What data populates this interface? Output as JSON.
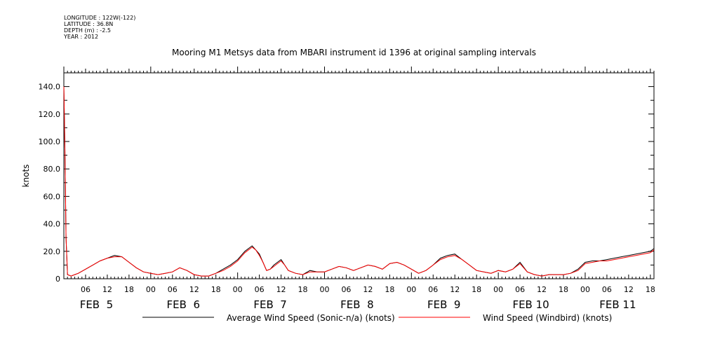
{
  "meta": {
    "longitude": "LONGITUDE : 122W(-122)",
    "latitude": "LATITUDE : 36.8N",
    "depth": "DEPTH (m) : -2.5",
    "year": "YEAR : 2012"
  },
  "chart_data": {
    "type": "line",
    "title": "Mooring M1 Metsys data from MBARI instrument id 1396 at original sampling intervals",
    "ylabel": "knots",
    "xlabel": "",
    "ylim": [
      0,
      150
    ],
    "y_ticks": [
      0,
      20,
      40,
      60,
      80,
      100,
      120,
      140
    ],
    "x_range_hours": [
      0,
      163
    ],
    "x_tick_labels": [
      "06",
      "12",
      "18",
      "00",
      "06",
      "12",
      "18",
      "00",
      "06",
      "12",
      "18",
      "00",
      "06",
      "12",
      "18",
      "00",
      "06",
      "12",
      "18",
      "00",
      "06",
      "12",
      "18",
      "00",
      "06",
      "12",
      "18"
    ],
    "x_tick_hours": [
      6,
      12,
      18,
      24,
      30,
      36,
      42,
      48,
      54,
      60,
      66,
      72,
      78,
      84,
      90,
      96,
      102,
      108,
      114,
      120,
      126,
      132,
      138,
      144,
      150,
      156,
      162
    ],
    "day_labels": [
      "FEB  5",
      "FEB  6",
      "FEB  7",
      "FEB  8",
      "FEB  9",
      "FEB 10",
      "FEB 11"
    ],
    "day_label_hours": [
      9,
      33,
      57,
      81,
      105,
      129,
      153
    ],
    "legend_position": "bottom",
    "series": [
      {
        "name": "Average Wind Speed (Sonic-n/a) (knots)",
        "color": "#000000",
        "x": [
          0,
          0.3,
          0.6,
          1,
          2,
          3,
          4,
          6,
          8,
          10,
          12,
          14,
          16,
          18,
          20,
          22,
          24,
          26,
          28,
          30,
          32,
          34,
          36,
          38,
          40,
          42,
          44,
          46,
          48,
          49,
          50,
          51,
          52,
          53,
          54,
          55,
          56,
          57,
          58,
          59,
          60,
          61,
          62,
          64,
          66,
          68,
          70,
          72,
          74,
          76,
          78,
          80,
          82,
          84,
          86,
          88,
          90,
          92,
          94,
          96,
          98,
          100,
          102,
          104,
          106,
          108,
          110,
          112,
          114,
          116,
          118,
          120,
          122,
          124,
          126,
          128,
          130,
          132,
          134,
          136,
          138,
          140,
          142,
          144,
          146,
          148,
          150,
          152,
          154,
          156,
          158,
          160,
          162,
          163
        ],
        "y": [
          140,
          95,
          30,
          3,
          2,
          3,
          4,
          7,
          10,
          13,
          15,
          17,
          16,
          12,
          8,
          5,
          4,
          3,
          4,
          5,
          8,
          6,
          3,
          2,
          2,
          4,
          7,
          10,
          14,
          17,
          20,
          22,
          24,
          21,
          18,
          12,
          6,
          7,
          10,
          12,
          14,
          10,
          6,
          4,
          3,
          6,
          5,
          5,
          7,
          9,
          8,
          6,
          8,
          10,
          9,
          7,
          11,
          12,
          10,
          7,
          4,
          6,
          10,
          15,
          17,
          18,
          14,
          10,
          6,
          5,
          4,
          6,
          5,
          7,
          12,
          5,
          3,
          2,
          3,
          3,
          3,
          4,
          7,
          12,
          13,
          13,
          14,
          15,
          16,
          17,
          18,
          19,
          20,
          22
        ]
      },
      {
        "name": "Wind Speed (Windbird) (knots)",
        "color": "#ff0000",
        "x": [
          0,
          0.3,
          0.6,
          1,
          2,
          3,
          4,
          6,
          8,
          10,
          12,
          14,
          16,
          18,
          20,
          22,
          24,
          26,
          28,
          30,
          32,
          34,
          36,
          38,
          40,
          42,
          44,
          46,
          48,
          49,
          50,
          51,
          52,
          53,
          54,
          55,
          56,
          57,
          58,
          59,
          60,
          61,
          62,
          64,
          66,
          68,
          70,
          72,
          74,
          76,
          78,
          80,
          82,
          84,
          86,
          88,
          90,
          92,
          94,
          96,
          98,
          100,
          102,
          104,
          106,
          108,
          110,
          112,
          114,
          116,
          118,
          120,
          122,
          124,
          126,
          128,
          130,
          132,
          134,
          136,
          138,
          140,
          142,
          144,
          146,
          148,
          150,
          152,
          154,
          156,
          158,
          160,
          162,
          163
        ],
        "y": [
          140,
          95,
          30,
          3,
          2,
          3,
          4,
          7,
          10,
          13,
          15,
          16,
          16,
          12,
          8,
          5,
          4,
          3,
          4,
          5,
          8,
          6,
          3,
          2,
          2,
          4,
          6,
          9,
          13,
          16,
          19,
          21,
          23,
          21,
          17,
          12,
          6,
          7,
          9,
          11,
          13,
          10,
          6,
          4,
          3,
          5,
          5,
          5,
          7,
          9,
          8,
          6,
          8,
          10,
          9,
          7,
          11,
          12,
          10,
          7,
          4,
          6,
          10,
          14,
          16,
          17,
          14,
          10,
          6,
          5,
          4,
          6,
          5,
          7,
          11,
          5,
          3,
          2,
          3,
          3,
          3,
          4,
          6,
          11,
          12,
          13,
          13,
          14,
          15,
          16,
          17,
          18,
          19,
          21
        ]
      }
    ]
  }
}
